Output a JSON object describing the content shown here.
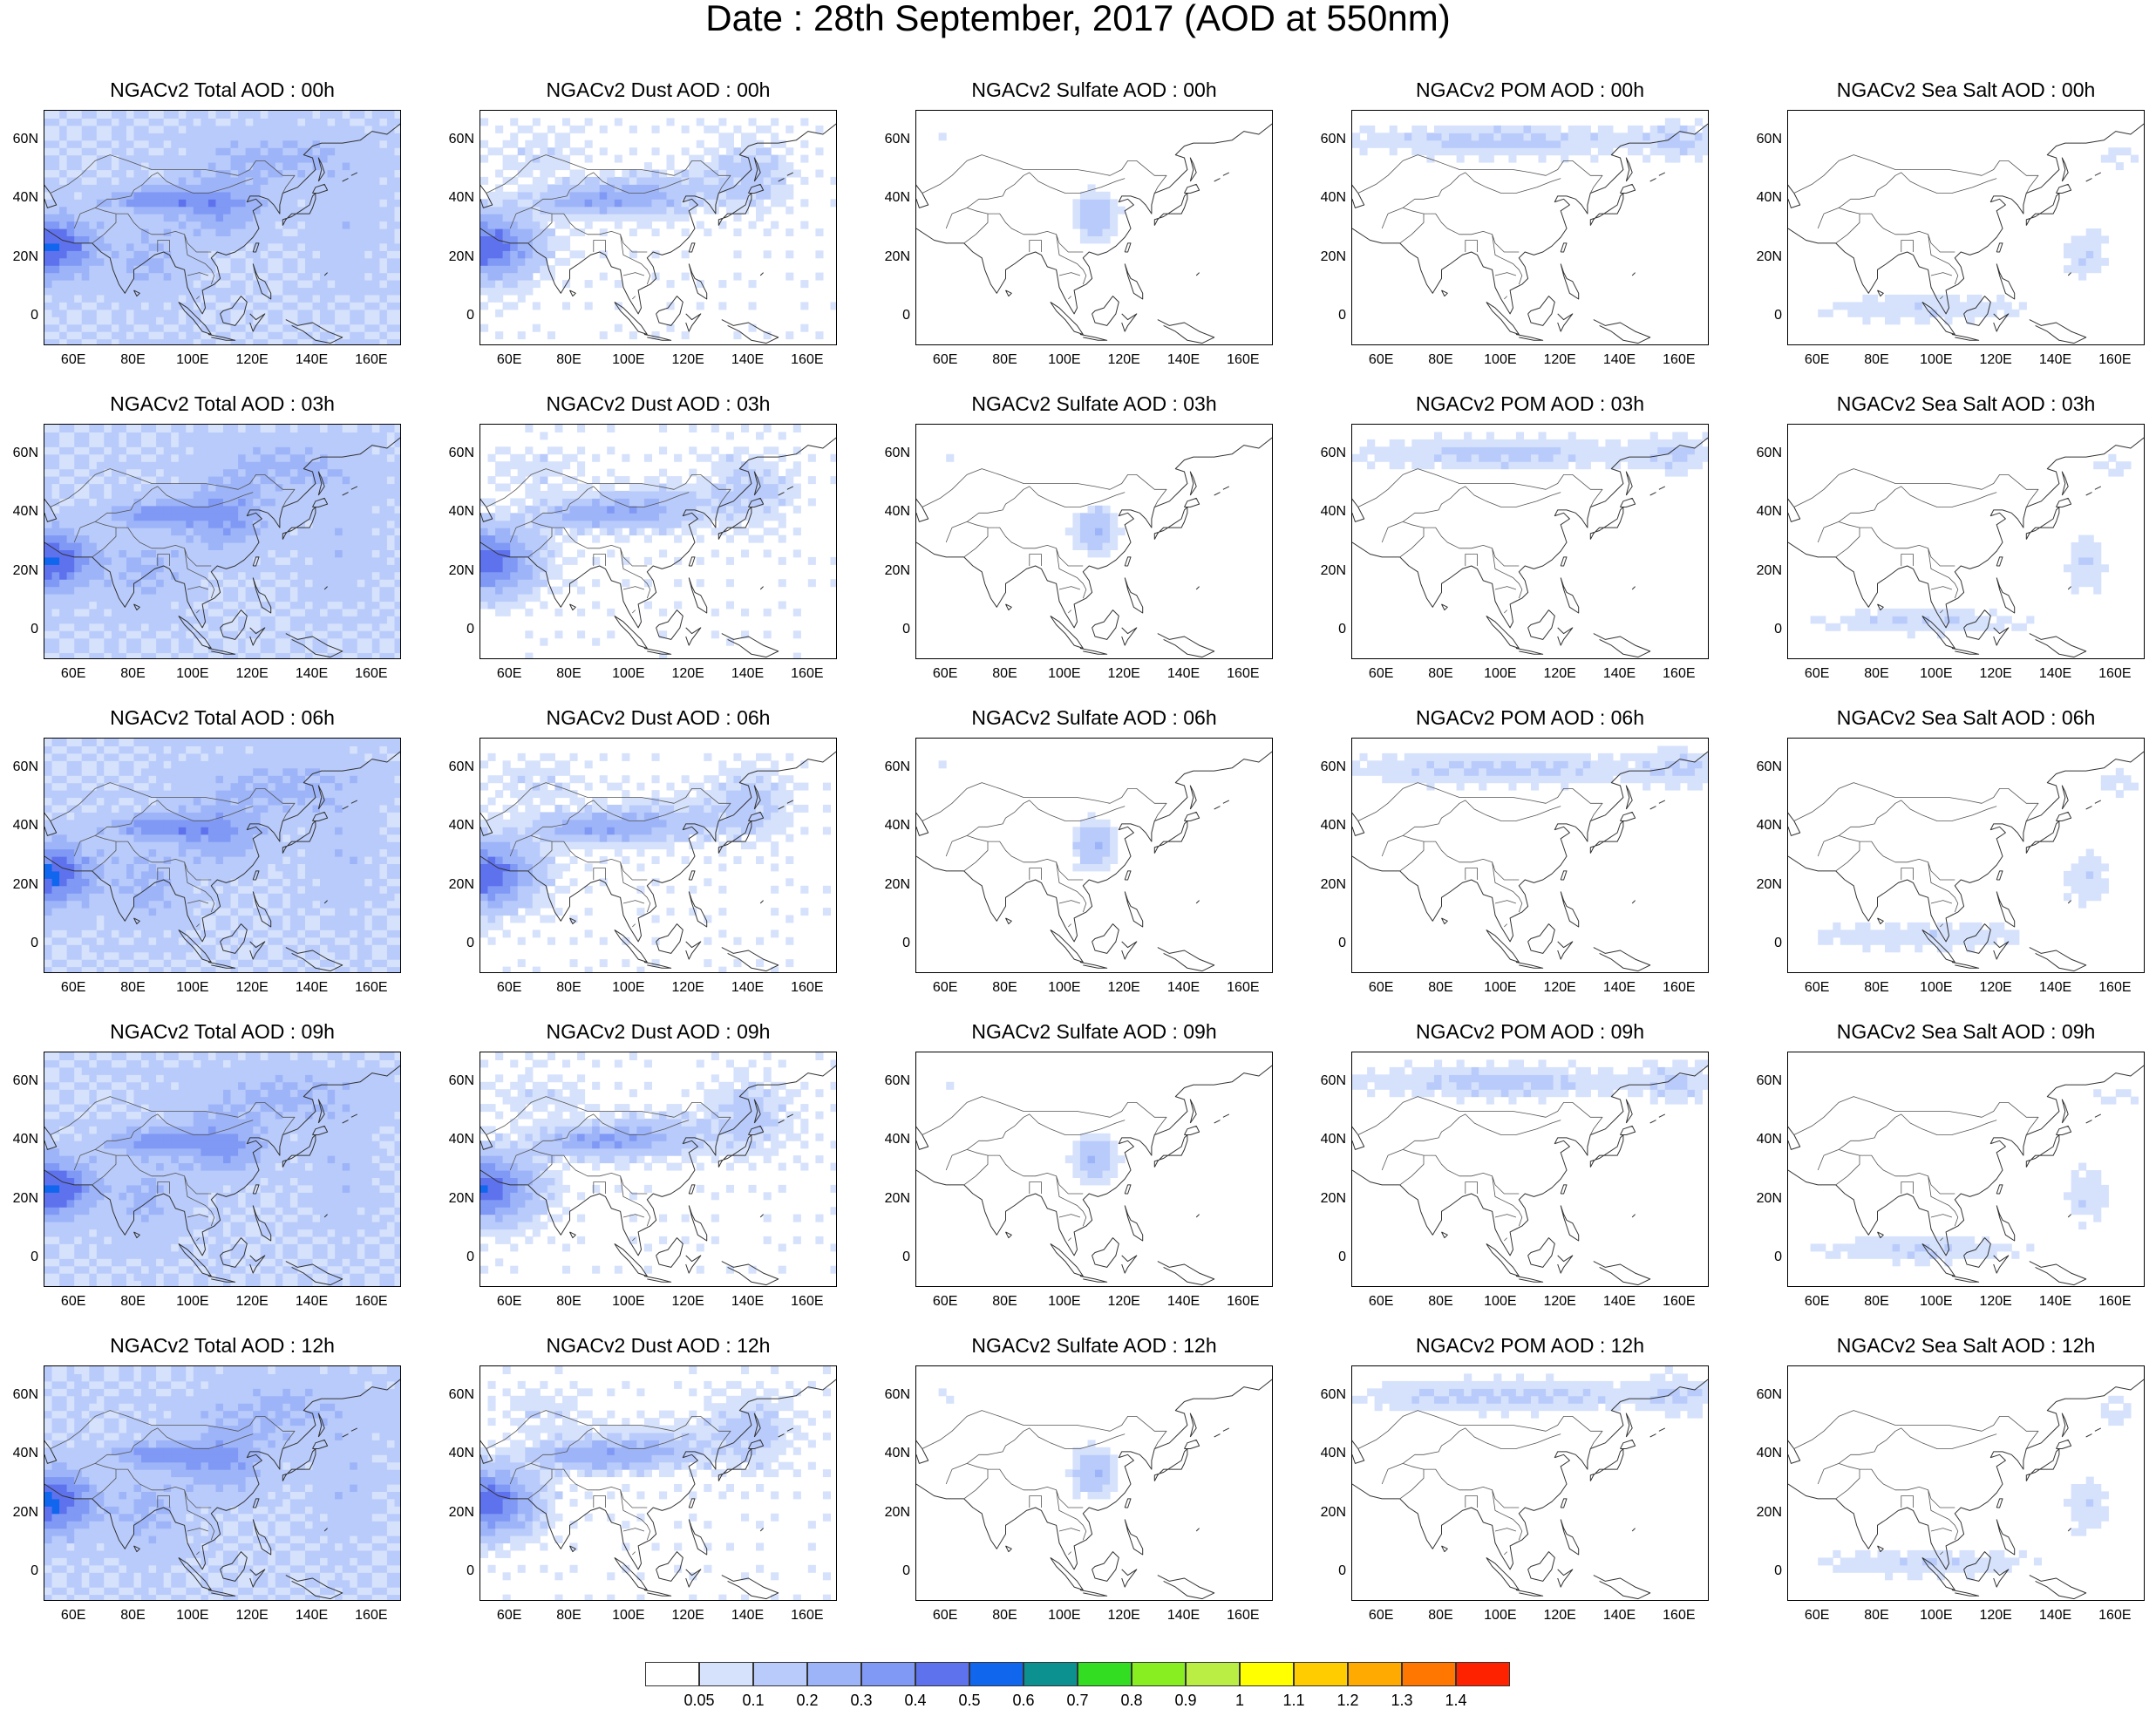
{
  "title": "Date : 28th September, 2017 (AOD at 550nm)",
  "x_tick_labels": [
    "60E",
    "80E",
    "100E",
    "120E",
    "140E",
    "160E"
  ],
  "y_tick_labels": [
    "60N",
    "40N",
    "20N",
    "0"
  ],
  "colorbar": {
    "colors": [
      "#ffffff",
      "#d6e2fc",
      "#b9cbfb",
      "#9db4f8",
      "#8099f5",
      "#5f72ee",
      "#1166ee",
      "#0d9090",
      "#33dd22",
      "#88ee22",
      "#bbee44",
      "#ffff00",
      "#ffcc00",
      "#ffaa00",
      "#ff7700",
      "#ff2200"
    ],
    "labels": [
      "0.05",
      "0.1",
      "0.2",
      "0.3",
      "0.4",
      "0.5",
      "0.6",
      "0.7",
      "0.8",
      "0.9",
      "1",
      "1.1",
      "1.2",
      "1.3",
      "1.4"
    ]
  },
  "panels": [
    {
      "title": "NGACv2 Total AOD : 00h",
      "species": "total",
      "hour": "00h"
    },
    {
      "title": "NGACv2 Dust AOD : 00h",
      "species": "dust",
      "hour": "00h"
    },
    {
      "title": "NGACv2 Sulfate AOD : 00h",
      "species": "sulfate",
      "hour": "00h"
    },
    {
      "title": "NGACv2 POM AOD : 00h",
      "species": "pom",
      "hour": "00h"
    },
    {
      "title": "NGACv2 Sea Salt AOD : 00h",
      "species": "seasalt",
      "hour": "00h"
    },
    {
      "title": "NGACv2 Total AOD : 03h",
      "species": "total",
      "hour": "03h"
    },
    {
      "title": "NGACv2 Dust AOD : 03h",
      "species": "dust",
      "hour": "03h"
    },
    {
      "title": "NGACv2 Sulfate AOD : 03h",
      "species": "sulfate",
      "hour": "03h"
    },
    {
      "title": "NGACv2 POM AOD : 03h",
      "species": "pom",
      "hour": "03h"
    },
    {
      "title": "NGACv2 Sea Salt AOD : 03h",
      "species": "seasalt",
      "hour": "03h"
    },
    {
      "title": "NGACv2 Total AOD : 06h",
      "species": "total",
      "hour": "06h"
    },
    {
      "title": "NGACv2 Dust AOD : 06h",
      "species": "dust",
      "hour": "06h"
    },
    {
      "title": "NGACv2 Sulfate AOD : 06h",
      "species": "sulfate",
      "hour": "06h"
    },
    {
      "title": "NGACv2 POM AOD : 06h",
      "species": "pom",
      "hour": "06h"
    },
    {
      "title": "NGACv2 Sea Salt AOD : 06h",
      "species": "seasalt",
      "hour": "06h"
    },
    {
      "title": "NGACv2 Total AOD : 09h",
      "species": "total",
      "hour": "09h"
    },
    {
      "title": "NGACv2 Dust AOD : 09h",
      "species": "dust",
      "hour": "09h"
    },
    {
      "title": "NGACv2 Sulfate AOD : 09h",
      "species": "sulfate",
      "hour": "09h"
    },
    {
      "title": "NGACv2 POM AOD : 09h",
      "species": "pom",
      "hour": "09h"
    },
    {
      "title": "NGACv2 Sea Salt  AOD : 09h",
      "species": "seasalt",
      "hour": "09h"
    },
    {
      "title": "NGACv2 Total AOD  : 12h",
      "species": "total",
      "hour": "12h"
    },
    {
      "title": "NGACv2 Dust AOD : 12h",
      "species": "dust",
      "hour": "12h"
    },
    {
      "title": "NGACv2 Sulfate AOD : 12h",
      "species": "sulfate",
      "hour": "12h"
    },
    {
      "title": "NGACv2 POM  AOD : 12h",
      "species": "pom",
      "hour": "12h"
    },
    {
      "title": "NGACv2 Sea Salt  AOD : 12h",
      "species": "seasalt",
      "hour": "12h"
    }
  ]
}
